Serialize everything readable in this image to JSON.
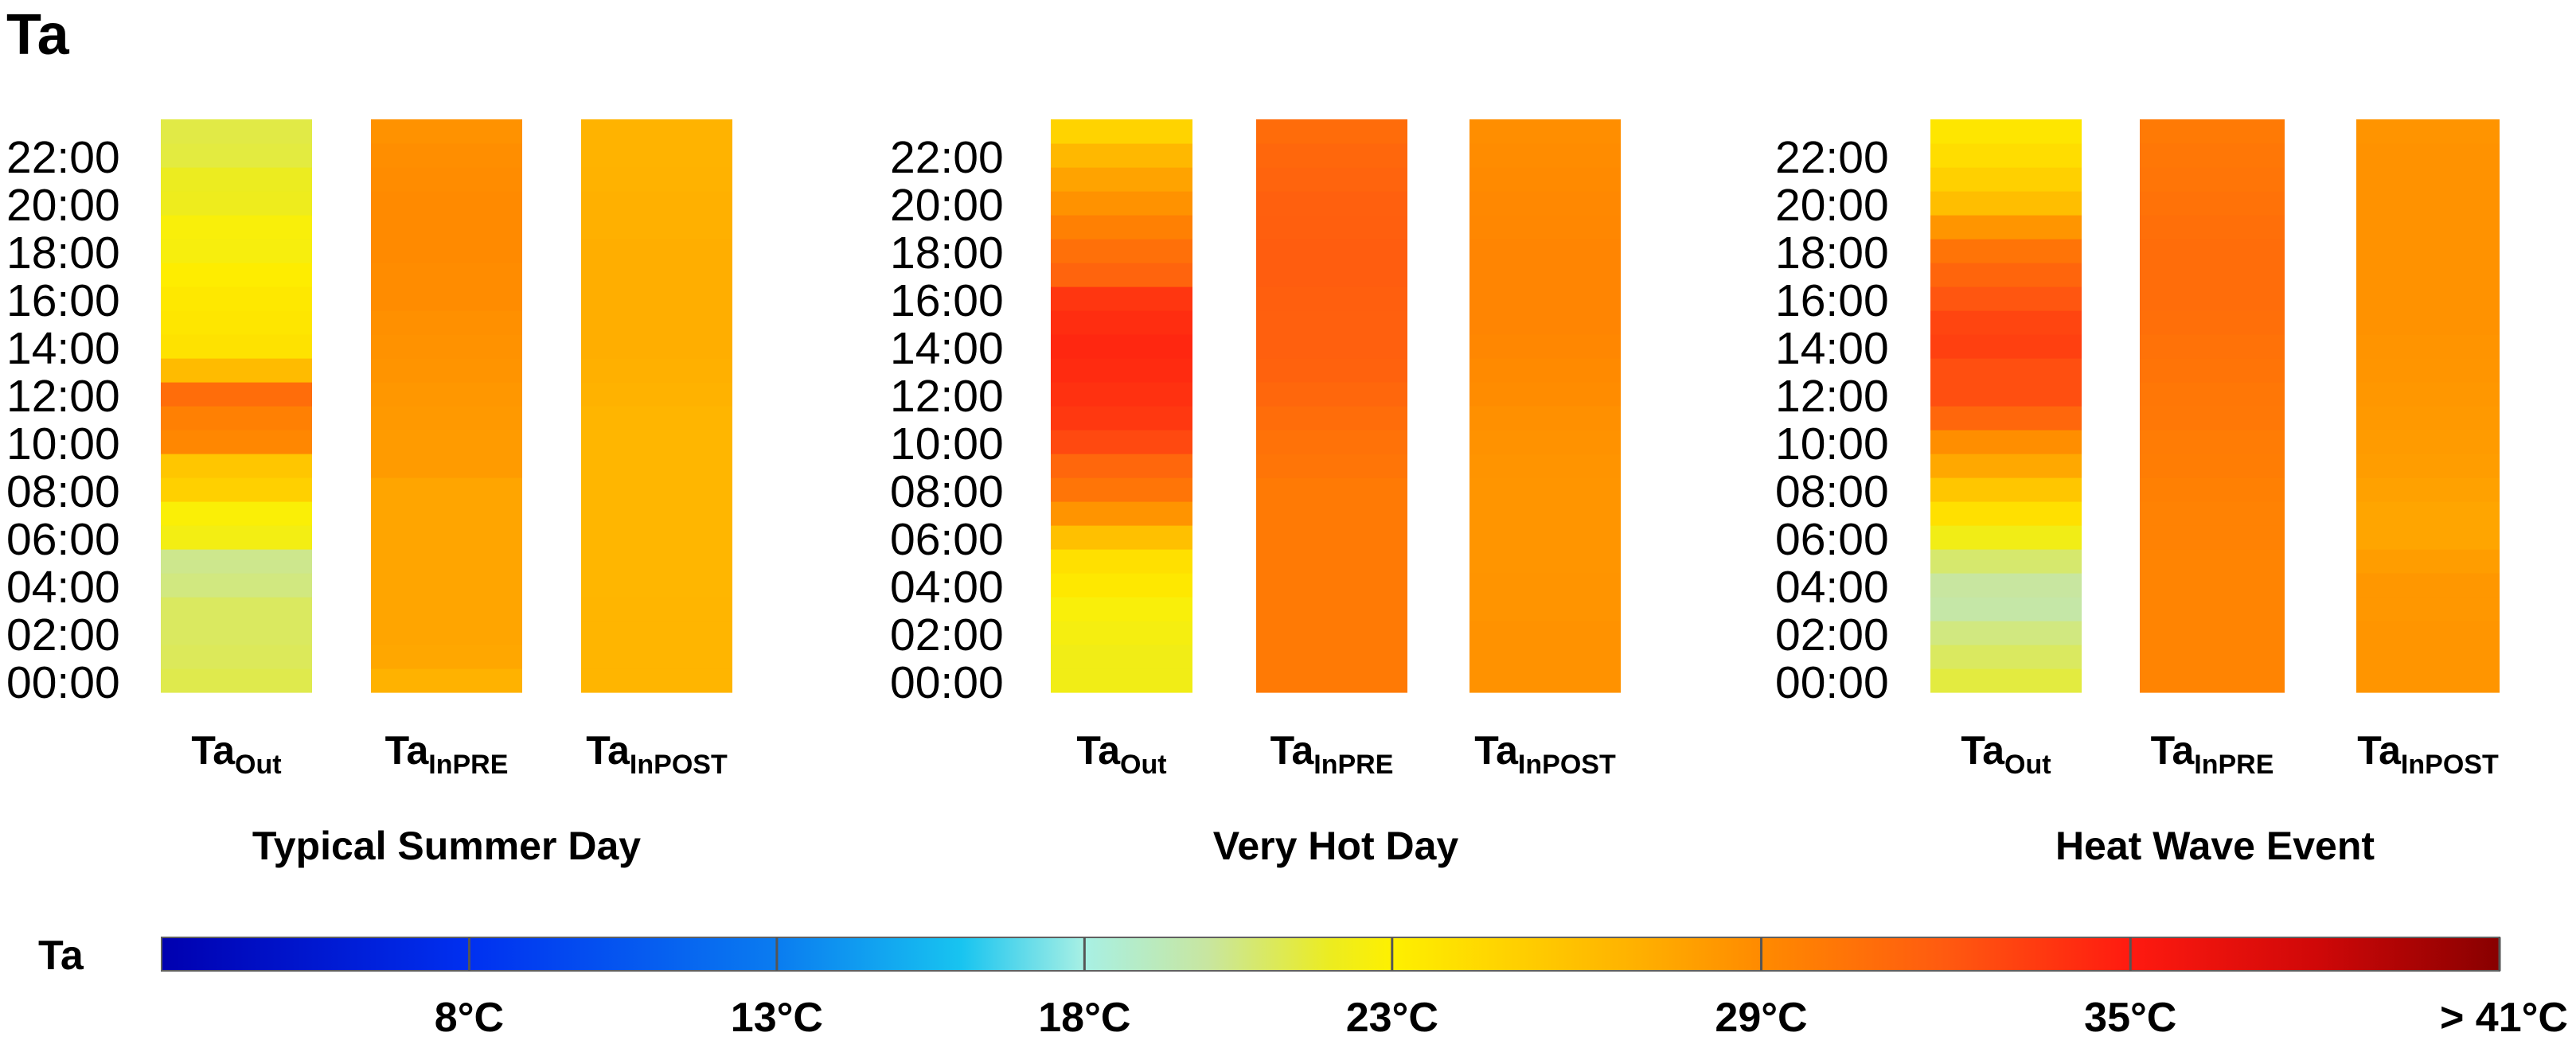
{
  "chart_data": {
    "type": "heatmap",
    "title": "Ta",
    "units": "°C",
    "y_tick_labels": [
      "00:00",
      "02:00",
      "04:00",
      "06:00",
      "08:00",
      "10:00",
      "12:00",
      "14:00",
      "16:00",
      "18:00",
      "20:00",
      "22:00"
    ],
    "hours": [
      0,
      1,
      2,
      3,
      4,
      5,
      6,
      7,
      8,
      9,
      10,
      11,
      12,
      13,
      14,
      15,
      16,
      17,
      18,
      19,
      20,
      21,
      22,
      23
    ],
    "column_labels": [
      {
        "base": "Ta",
        "sub": "Out"
      },
      {
        "base": "Ta",
        "sub": "InPRE"
      },
      {
        "base": "Ta",
        "sub": "InPOST"
      }
    ],
    "panels": [
      {
        "name": "Typical Summer Day",
        "series": [
          {
            "column": "TaOut",
            "values": [
              21.3,
              21.1,
              21.0,
              21.0,
              20.5,
              20.3,
              22.4,
              22.8,
              25.0,
              25.6,
              29.2,
              29.6,
              30.8,
              26.3,
              23.9,
              23.6,
              23.5,
              23.2,
              22.6,
              22.7,
              22.1,
              22.0,
              21.5,
              21.4
            ]
          },
          {
            "column": "TaInPRE",
            "values": [
              26.9,
              27.5,
              27.6,
              27.6,
              27.6,
              27.6,
              27.6,
              27.6,
              27.6,
              28.1,
              28.1,
              28.2,
              28.3,
              28.5,
              28.6,
              28.7,
              28.9,
              28.9,
              29.0,
              29.0,
              29.0,
              28.9,
              28.8,
              28.6
            ]
          },
          {
            "column": "TaInPOST",
            "values": [
              26.7,
              26.7,
              26.7,
              26.7,
              26.6,
              26.6,
              26.6,
              26.6,
              26.6,
              26.6,
              26.6,
              26.7,
              26.9,
              27.0,
              27.1,
              27.1,
              27.1,
              27.1,
              27.1,
              27.0,
              27.0,
              26.9,
              26.8,
              26.8
            ]
          }
        ]
      },
      {
        "name": "Very Hot Day",
        "series": [
          {
            "column": "TaOut",
            "values": [
              22.3,
              22.3,
              22.5,
              22.7,
              23.5,
              24.0,
              26.0,
              28.5,
              30.3,
              31.2,
              32.8,
              33.6,
              33.9,
              34.2,
              34.4,
              34.1,
              33.7,
              31.4,
              30.6,
              29.6,
              28.6,
              27.7,
              26.5,
              24.8
            ]
          },
          {
            "column": "TaInPRE",
            "values": [
              30.0,
              30.0,
              30.0,
              30.0,
              30.0,
              30.0,
              30.0,
              30.0,
              30.0,
              30.3,
              30.5,
              30.8,
              31.2,
              31.5,
              31.6,
              31.6,
              31.7,
              31.8,
              31.8,
              31.7,
              31.6,
              31.4,
              31.2,
              30.9
            ]
          },
          {
            "column": "TaInPOST",
            "values": [
              28.6,
              28.6,
              28.6,
              28.5,
              28.5,
              28.4,
              28.4,
              28.4,
              28.4,
              28.5,
              28.6,
              28.7,
              28.9,
              29.0,
              29.2,
              29.3,
              29.3,
              29.3,
              29.3,
              29.2,
              29.1,
              29.0,
              28.9,
              28.8
            ]
          }
        ]
      },
      {
        "name": "Heat Wave Event",
        "series": [
          {
            "column": "TaOut",
            "values": [
              21.5,
              21.0,
              20.5,
              19.8,
              20.0,
              20.8,
              22.3,
              24.0,
              25.6,
              27.4,
              28.8,
              31.2,
              32.5,
              32.5,
              33.2,
              33.0,
              32.2,
              31.3,
              30.4,
              28.4,
              26.1,
              25.0,
              24.2,
              23.6
            ]
          },
          {
            "column": "TaInPRE",
            "values": [
              29.4,
              29.4,
              29.4,
              29.4,
              29.4,
              29.4,
              29.5,
              29.5,
              29.6,
              29.8,
              29.9,
              30.1,
              30.2,
              30.4,
              30.5,
              30.7,
              30.8,
              30.8,
              30.8,
              30.7,
              30.5,
              30.3,
              30.2,
              30.0
            ]
          },
          {
            "column": "TaInPOST",
            "values": [
              28.4,
              28.4,
              28.4,
              28.3,
              28.3,
              28.0,
              27.6,
              27.6,
              27.8,
              28.0,
              28.1,
              28.2,
              28.3,
              28.4,
              28.5,
              28.6,
              28.6,
              28.6,
              28.6,
              28.6,
              28.6,
              28.6,
              28.6,
              28.5
            ]
          }
        ]
      }
    ],
    "colorbar": {
      "label": "Ta",
      "min": 3,
      "max": 41,
      "ticks": [
        {
          "value": 8,
          "label": "8°C"
        },
        {
          "value": 13,
          "label": "13°C"
        },
        {
          "value": 18,
          "label": "18°C"
        },
        {
          "value": 23,
          "label": "23°C"
        },
        {
          "value": 29,
          "label": "29°C"
        },
        {
          "value": 35,
          "label": "35°C"
        },
        {
          "value": 41,
          "label": "> 41°C"
        }
      ],
      "stops": [
        {
          "v": 3,
          "c": "#0000b0"
        },
        {
          "v": 8,
          "c": "#0030f0"
        },
        {
          "v": 13,
          "c": "#0a7cf0"
        },
        {
          "v": 16,
          "c": "#18c4f0"
        },
        {
          "v": 18,
          "c": "#a8f0e4"
        },
        {
          "v": 20,
          "c": "#c8e6a0"
        },
        {
          "v": 22,
          "c": "#ecec20"
        },
        {
          "v": 23,
          "c": "#fef000"
        },
        {
          "v": 25,
          "c": "#ffd000"
        },
        {
          "v": 27,
          "c": "#ffb000"
        },
        {
          "v": 29,
          "c": "#ff8a00"
        },
        {
          "v": 32,
          "c": "#ff5a10"
        },
        {
          "v": 35,
          "c": "#ff1a10"
        },
        {
          "v": 38,
          "c": "#d00808"
        },
        {
          "v": 41,
          "c": "#880000"
        }
      ]
    }
  }
}
